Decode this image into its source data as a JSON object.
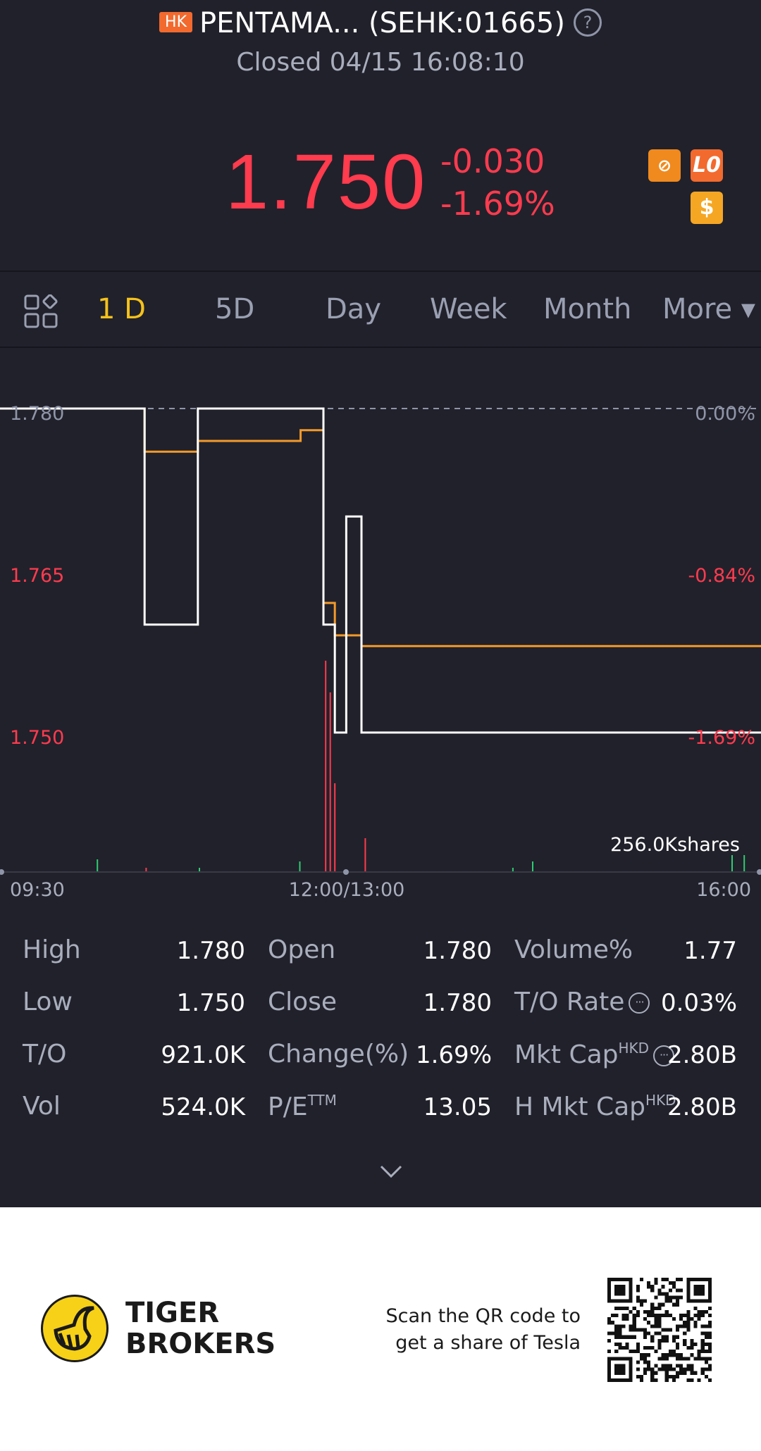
{
  "header": {
    "market_badge": "HK",
    "title": "PENTAMA... (SEHK:01665)",
    "status": "Closed 04/15 16:08:10",
    "price": "1.750",
    "change_abs": "-0.030",
    "change_pct": "-1.69%",
    "badge_lo": "L0",
    "badge_dollar": "$",
    "badge_margin": "⊘"
  },
  "tabs": [
    {
      "label": "1 D",
      "active": true
    },
    {
      "label": "5D"
    },
    {
      "label": "Day"
    },
    {
      "label": "Week"
    },
    {
      "label": "Month"
    },
    {
      "label": "More ▾"
    }
  ],
  "chart_data": {
    "type": "line",
    "y_left_ticks": [
      "1.780",
      "1.765",
      "1.750"
    ],
    "y_right_ticks": [
      "0.00%",
      "-0.84%",
      "-1.69%"
    ],
    "x_ticks": [
      "09:30",
      "12:00/13:00",
      "16:00"
    ],
    "volume_label": "256.0Kshares",
    "ylim": [
      1.745,
      1.785
    ],
    "prev_close": 1.78,
    "series": [
      {
        "color": "#ffffff",
        "points": [
          [
            0,
            1.78
          ],
          [
            0.19,
            1.78
          ],
          [
            0.19,
            1.76
          ],
          [
            0.26,
            1.76
          ],
          [
            0.26,
            1.78
          ],
          [
            0.425,
            1.78
          ],
          [
            0.425,
            1.76
          ],
          [
            0.44,
            1.76
          ],
          [
            0.44,
            1.75
          ],
          [
            0.455,
            1.75
          ],
          [
            0.455,
            1.77
          ],
          [
            0.475,
            1.77
          ],
          [
            0.475,
            1.75
          ],
          [
            1,
            1.75
          ]
        ]
      },
      {
        "color": "#f39a2a",
        "points": [
          [
            0,
            1.78
          ],
          [
            0.19,
            1.78
          ],
          [
            0.19,
            1.776
          ],
          [
            0.26,
            1.776
          ],
          [
            0.26,
            1.777
          ],
          [
            0.395,
            1.777
          ],
          [
            0.395,
            1.778
          ],
          [
            0.425,
            1.778
          ],
          [
            0.425,
            1.762
          ],
          [
            0.44,
            1.762
          ],
          [
            0.44,
            1.759
          ],
          [
            0.475,
            1.759
          ],
          [
            0.475,
            1.758
          ],
          [
            1,
            1.758
          ]
        ]
      }
    ],
    "volume_bars": [
      {
        "x": 0.128,
        "v": 0.06,
        "color": "#2ecc71"
      },
      {
        "x": 0.192,
        "v": 0.02,
        "color": "#ff3b4e"
      },
      {
        "x": 0.262,
        "v": 0.02,
        "color": "#2ecc71"
      },
      {
        "x": 0.394,
        "v": 0.05,
        "color": "#2ecc71"
      },
      {
        "x": 0.428,
        "v": 1.0,
        "color": "#ff3b4e"
      },
      {
        "x": 0.434,
        "v": 0.85,
        "color": "#ff3b4e"
      },
      {
        "x": 0.44,
        "v": 0.42,
        "color": "#ff3b4e"
      },
      {
        "x": 0.48,
        "v": 0.16,
        "color": "#ff3b4e"
      },
      {
        "x": 0.674,
        "v": 0.02,
        "color": "#2ecc71"
      },
      {
        "x": 0.7,
        "v": 0.05,
        "color": "#2ecc71"
      },
      {
        "x": 0.962,
        "v": 0.08,
        "color": "#2ecc71"
      },
      {
        "x": 0.978,
        "v": 0.08,
        "color": "#2ecc71"
      }
    ]
  },
  "stats": {
    "high_label": "High",
    "high": "1.780",
    "low_label": "Low",
    "low": "1.750",
    "to_label": "T/O",
    "to": "921.0K",
    "vol_label": "Vol",
    "vol": "524.0K",
    "open_label": "Open",
    "open": "1.780",
    "close_label": "Close",
    "close": "1.780",
    "change_label": "Change(%)",
    "change": "1.69%",
    "pe_label": "P/E",
    "pe_sup": "TTM",
    "pe": "13.05",
    "volpct_label": "Volume%",
    "volpct": "1.77",
    "torate_label": "T/O Rate",
    "torate": "0.03%",
    "mktcap_label": "Mkt Cap",
    "mktcap_sup": "HKD",
    "mktcap": "2.80B",
    "hmktcap_label": "H Mkt Cap",
    "hmktcap_sup": "HKD",
    "hmktcap": "2.80B"
  },
  "footer": {
    "brand_line1": "TIGER",
    "brand_line2": "BROKERS",
    "scan_line1": "Scan the QR code to",
    "scan_line2": "get a share of Tesla"
  }
}
